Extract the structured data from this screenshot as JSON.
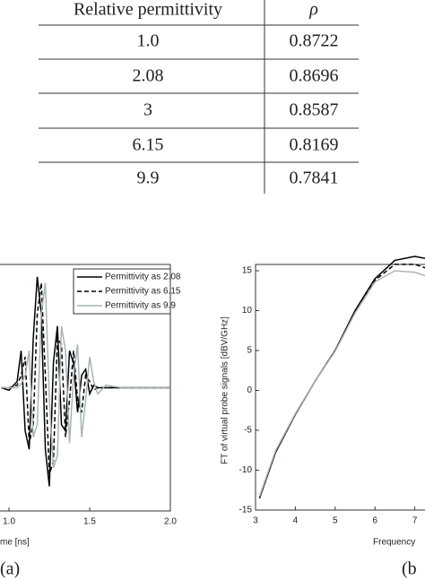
{
  "table": {
    "header": [
      "Relative permittivity",
      "ρ"
    ],
    "rows": [
      [
        "1.0",
        "0.8722"
      ],
      [
        "2.08",
        "0.8696"
      ],
      [
        "3",
        "0.8587"
      ],
      [
        "6.15",
        "0.8169"
      ],
      [
        "9.9",
        "0.7841"
      ]
    ]
  },
  "chart_data": [
    {
      "type": "line",
      "xlabel": "me [ns]",
      "panel_label": "(a)",
      "x": [
        0.95,
        1.0,
        1.05,
        1.075,
        1.1,
        1.125,
        1.15,
        1.175,
        1.2,
        1.225,
        1.25,
        1.275,
        1.3,
        1.325,
        1.35,
        1.375,
        1.4,
        1.425,
        1.45,
        1.475,
        1.5,
        1.525,
        1.55,
        1.6,
        1.7,
        2.0
      ],
      "xlim": [
        0.944,
        2.0
      ],
      "ylim": [
        -1,
        1
      ],
      "xticks": [
        {
          "value": 1.0,
          "label": "1.0"
        },
        1.5,
        {
          "value": 2.0,
          "label": "2.0"
        }
      ],
      "legend": "upper right",
      "series": [
        {
          "name": "Permittivity as 2.08",
          "color": "#000000",
          "dash": "solid",
          "values": [
            0,
            -0.02,
            0.05,
            0.3,
            -0.35,
            -0.5,
            0.4,
            0.9,
            0.6,
            -0.5,
            -0.8,
            0.2,
            0.5,
            -0.3,
            -0.35,
            0.3,
            0.2,
            -0.2,
            0.1,
            0.15,
            -0.05,
            0.02,
            0,
            0,
            0,
            0
          ]
        },
        {
          "name": "Permittivity as 6.15",
          "color": "#000000",
          "dash": "dashed",
          "values": [
            0,
            0,
            0.02,
            0.1,
            0.25,
            -0.45,
            -0.3,
            0.6,
            0.85,
            0.1,
            -0.7,
            -0.6,
            0.4,
            0.35,
            -0.4,
            -0.1,
            0.3,
            -0.1,
            -0.2,
            0.1,
            0.05,
            -0.02,
            0,
            0,
            0,
            0
          ]
        },
        {
          "name": "Permittivity as 9.9",
          "color": "#a9b4b8",
          "dash": "solid",
          "values": [
            0,
            0,
            0,
            0.03,
            0.1,
            0.3,
            -0.4,
            -0.3,
            0.6,
            0.85,
            -0.1,
            -0.65,
            -0.55,
            0.5,
            0.3,
            -0.45,
            0.1,
            0.35,
            -0.4,
            -0.1,
            0.25,
            0.05,
            -0.05,
            0.02,
            0,
            0
          ]
        }
      ]
    },
    {
      "type": "line",
      "xlabel": "Frequency",
      "ylabel": "FT of virtual probe signals [dBV/GHz]",
      "panel_label": "(b",
      "x": [
        3.1,
        3.5,
        4,
        4.5,
        5,
        5.5,
        6,
        6.5,
        7,
        7.3
      ],
      "xlim": [
        3,
        8
      ],
      "ylim": [
        -15,
        15
      ],
      "xticks": [
        3,
        4,
        5,
        6,
        7
      ],
      "yticks": [
        -15,
        -10,
        -5,
        0,
        5,
        10,
        15
      ],
      "series": [
        {
          "color": "#000000",
          "dash": "solid",
          "values": [
            -13.5,
            -7.8,
            -3,
            1.2,
            5,
            10,
            14,
            16.3,
            16.8,
            16.5
          ]
        },
        {
          "color": "#000000",
          "dash": "dashed",
          "values": [
            -13.5,
            -7.8,
            -3,
            1.2,
            5,
            9.9,
            13.8,
            15.8,
            15.8,
            15.3
          ]
        },
        {
          "color": "#a9b4b8",
          "dash": "solid",
          "values": [
            -13.3,
            -7.6,
            -2.9,
            1.2,
            4.9,
            9.7,
            13.6,
            15,
            14.8,
            14.3
          ]
        }
      ]
    }
  ]
}
